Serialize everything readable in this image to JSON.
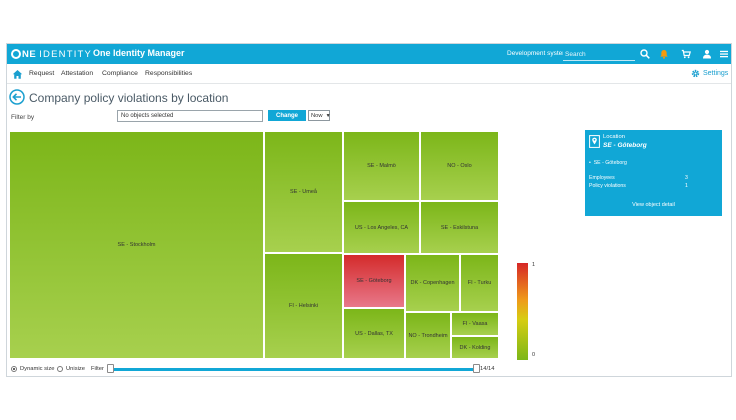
{
  "header": {
    "logo_one": "NE",
    "logo_identity": "IDENTITY",
    "app_title": "One Identity Manager",
    "environment": "Development system",
    "search_placeholder": "Search",
    "icons": [
      "search-icon",
      "bell-icon",
      "cart-icon",
      "user-icon",
      "menu-icon"
    ],
    "accent_color": "#11a7d6",
    "alert_color": "#f59b0b"
  },
  "nav": {
    "items": [
      "Request",
      "Attestation",
      "Compliance",
      "Responsibilities"
    ],
    "settings_label": "Settings"
  },
  "page": {
    "title": "Company policy violations by location",
    "filter_label": "Filter by",
    "filter_value": "No objects selected",
    "change_label": "Change",
    "time_select": "Now"
  },
  "treemap": {
    "cells": [
      {
        "label": "SE - Stockholm",
        "violations": 0
      },
      {
        "label": "SE - Umeå",
        "violations": 0
      },
      {
        "label": "SE - Malmö",
        "violations": 0
      },
      {
        "label": "NO - Oslo",
        "violations": 0
      },
      {
        "label": "US - Los Angeles, CA",
        "violations": 0
      },
      {
        "label": "SE - Eskilstuna",
        "violations": 0
      },
      {
        "label": "FI - Helsinki",
        "violations": 0
      },
      {
        "label": "SE - Göteborg",
        "violations": 1
      },
      {
        "label": "DK - Copenhagen",
        "violations": 0
      },
      {
        "label": "FI - Turku",
        "violations": 0
      },
      {
        "label": "US - Dallas, TX",
        "violations": 0
      },
      {
        "label": "NO - Trondheim",
        "violations": 0
      },
      {
        "label": "FI - Vaasa",
        "violations": 0
      },
      {
        "label": "DK - Kolding",
        "violations": 0
      }
    ],
    "legend_max": "1",
    "legend_min": "0",
    "low_color": "#7cb619",
    "high_color": "#d42b2b"
  },
  "detail": {
    "type_label": "Location",
    "name": "SE - Göteborg",
    "bullet_item": "SE - Göteborg",
    "employees_label": "Employees",
    "employees_value": "3",
    "violations_label": "Policy violations",
    "violations_value": "1",
    "link_label": "View object detail"
  },
  "controls": {
    "dynamic_label": "Dynamic size",
    "unisize_label": "Unisize",
    "filter_label": "Filter",
    "count": "14/14",
    "range_min_fraction": 0.0,
    "range_max_fraction": 1.0
  }
}
